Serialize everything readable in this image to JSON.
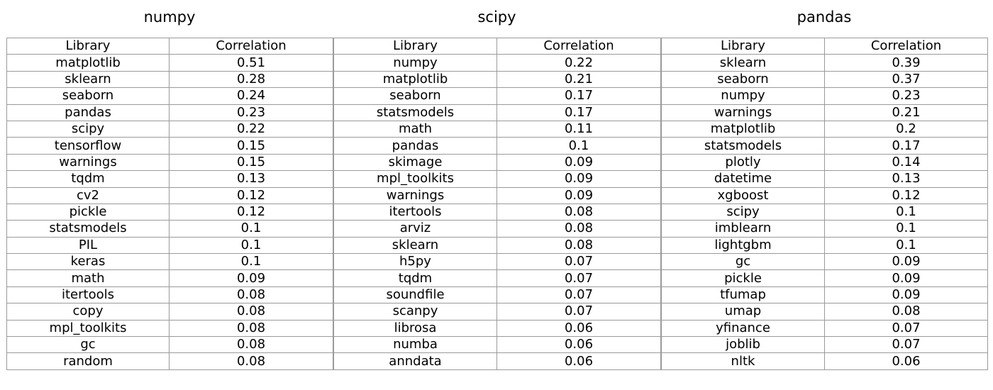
{
  "chart_data": [
    {
      "type": "table",
      "title": "numpy",
      "columns": [
        "Library",
        "Correlation"
      ],
      "rows": [
        [
          "matplotlib",
          "0.51"
        ],
        [
          "sklearn",
          "0.28"
        ],
        [
          "seaborn",
          "0.24"
        ],
        [
          "pandas",
          "0.23"
        ],
        [
          "scipy",
          "0.22"
        ],
        [
          "tensorflow",
          "0.15"
        ],
        [
          "warnings",
          "0.15"
        ],
        [
          "tqdm",
          "0.13"
        ],
        [
          "cv2",
          "0.12"
        ],
        [
          "pickle",
          "0.12"
        ],
        [
          "statsmodels",
          "0.1"
        ],
        [
          "PIL",
          "0.1"
        ],
        [
          "keras",
          "0.1"
        ],
        [
          "math",
          "0.09"
        ],
        [
          "itertools",
          "0.08"
        ],
        [
          "copy",
          "0.08"
        ],
        [
          "mpl_toolkits",
          "0.08"
        ],
        [
          "gc",
          "0.08"
        ],
        [
          "random",
          "0.08"
        ]
      ]
    },
    {
      "type": "table",
      "title": "scipy",
      "columns": [
        "Library",
        "Correlation"
      ],
      "rows": [
        [
          "numpy",
          "0.22"
        ],
        [
          "matplotlib",
          "0.21"
        ],
        [
          "seaborn",
          "0.17"
        ],
        [
          "statsmodels",
          "0.17"
        ],
        [
          "math",
          "0.11"
        ],
        [
          "pandas",
          "0.1"
        ],
        [
          "skimage",
          "0.09"
        ],
        [
          "mpl_toolkits",
          "0.09"
        ],
        [
          "warnings",
          "0.09"
        ],
        [
          "itertools",
          "0.08"
        ],
        [
          "arviz",
          "0.08"
        ],
        [
          "sklearn",
          "0.08"
        ],
        [
          "h5py",
          "0.07"
        ],
        [
          "tqdm",
          "0.07"
        ],
        [
          "soundfile",
          "0.07"
        ],
        [
          "scanpy",
          "0.07"
        ],
        [
          "librosa",
          "0.06"
        ],
        [
          "numba",
          "0.06"
        ],
        [
          "anndata",
          "0.06"
        ]
      ]
    },
    {
      "type": "table",
      "title": "pandas",
      "columns": [
        "Library",
        "Correlation"
      ],
      "rows": [
        [
          "sklearn",
          "0.39"
        ],
        [
          "seaborn",
          "0.37"
        ],
        [
          "numpy",
          "0.23"
        ],
        [
          "warnings",
          "0.21"
        ],
        [
          "matplotlib",
          "0.2"
        ],
        [
          "statsmodels",
          "0.17"
        ],
        [
          "plotly",
          "0.14"
        ],
        [
          "datetime",
          "0.13"
        ],
        [
          "xgboost",
          "0.12"
        ],
        [
          "scipy",
          "0.1"
        ],
        [
          "imblearn",
          "0.1"
        ],
        [
          "lightgbm",
          "0.1"
        ],
        [
          "gc",
          "0.09"
        ],
        [
          "pickle",
          "0.09"
        ],
        [
          "tfumap",
          "0.09"
        ],
        [
          "umap",
          "0.08"
        ],
        [
          "yfinance",
          "0.07"
        ],
        [
          "joblib",
          "0.07"
        ],
        [
          "nltk",
          "0.06"
        ]
      ]
    }
  ]
}
